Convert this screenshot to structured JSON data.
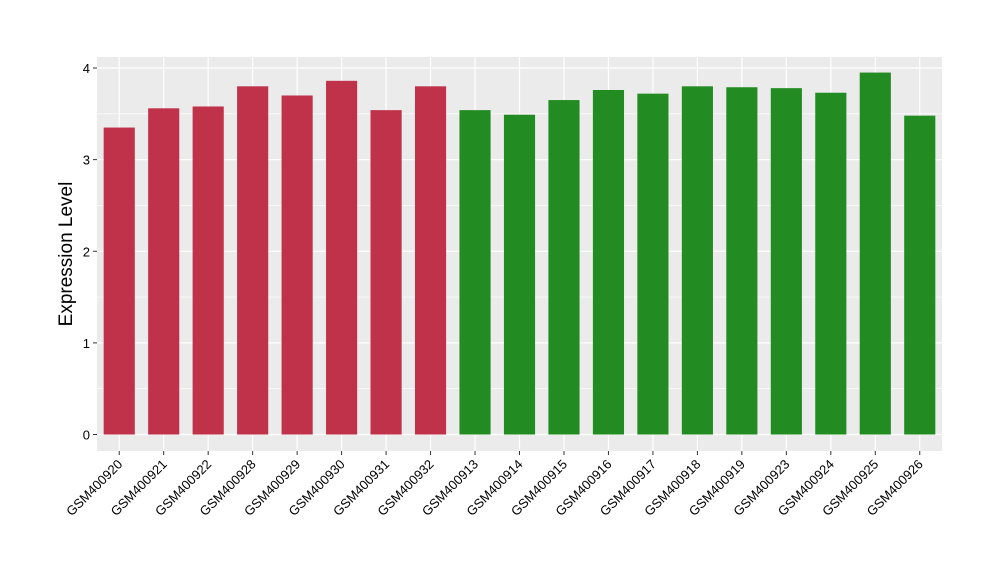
{
  "chart_data": {
    "type": "bar",
    "ylabel": "Expression Level",
    "xlabel": "",
    "ylim": [
      -0.18,
      4.12
    ],
    "yticks": [
      0,
      1,
      2,
      3,
      4
    ],
    "grid": true,
    "background": "#ebebeb",
    "categories": [
      "GSM400920",
      "GSM400921",
      "GSM400922",
      "GSM400928",
      "GSM400929",
      "GSM400930",
      "GSM400931",
      "GSM400932",
      "GSM400913",
      "GSM400914",
      "GSM400915",
      "GSM400916",
      "GSM400917",
      "GSM400918",
      "GSM400919",
      "GSM400923",
      "GSM400924",
      "GSM400925",
      "GSM400926"
    ],
    "values": [
      3.35,
      3.56,
      3.58,
      3.8,
      3.7,
      3.86,
      3.54,
      3.8,
      3.54,
      3.49,
      3.65,
      3.76,
      3.72,
      3.8,
      3.79,
      3.78,
      3.73,
      3.95,
      3.48
    ],
    "bar_colors": [
      "#c0314a",
      "#c0314a",
      "#c0314a",
      "#c0314a",
      "#c0314a",
      "#c0314a",
      "#c0314a",
      "#c0314a",
      "#228b22",
      "#228b22",
      "#228b22",
      "#228b22",
      "#228b22",
      "#228b22",
      "#228b22",
      "#228b22",
      "#228b22",
      "#228b22",
      "#228b22"
    ]
  }
}
